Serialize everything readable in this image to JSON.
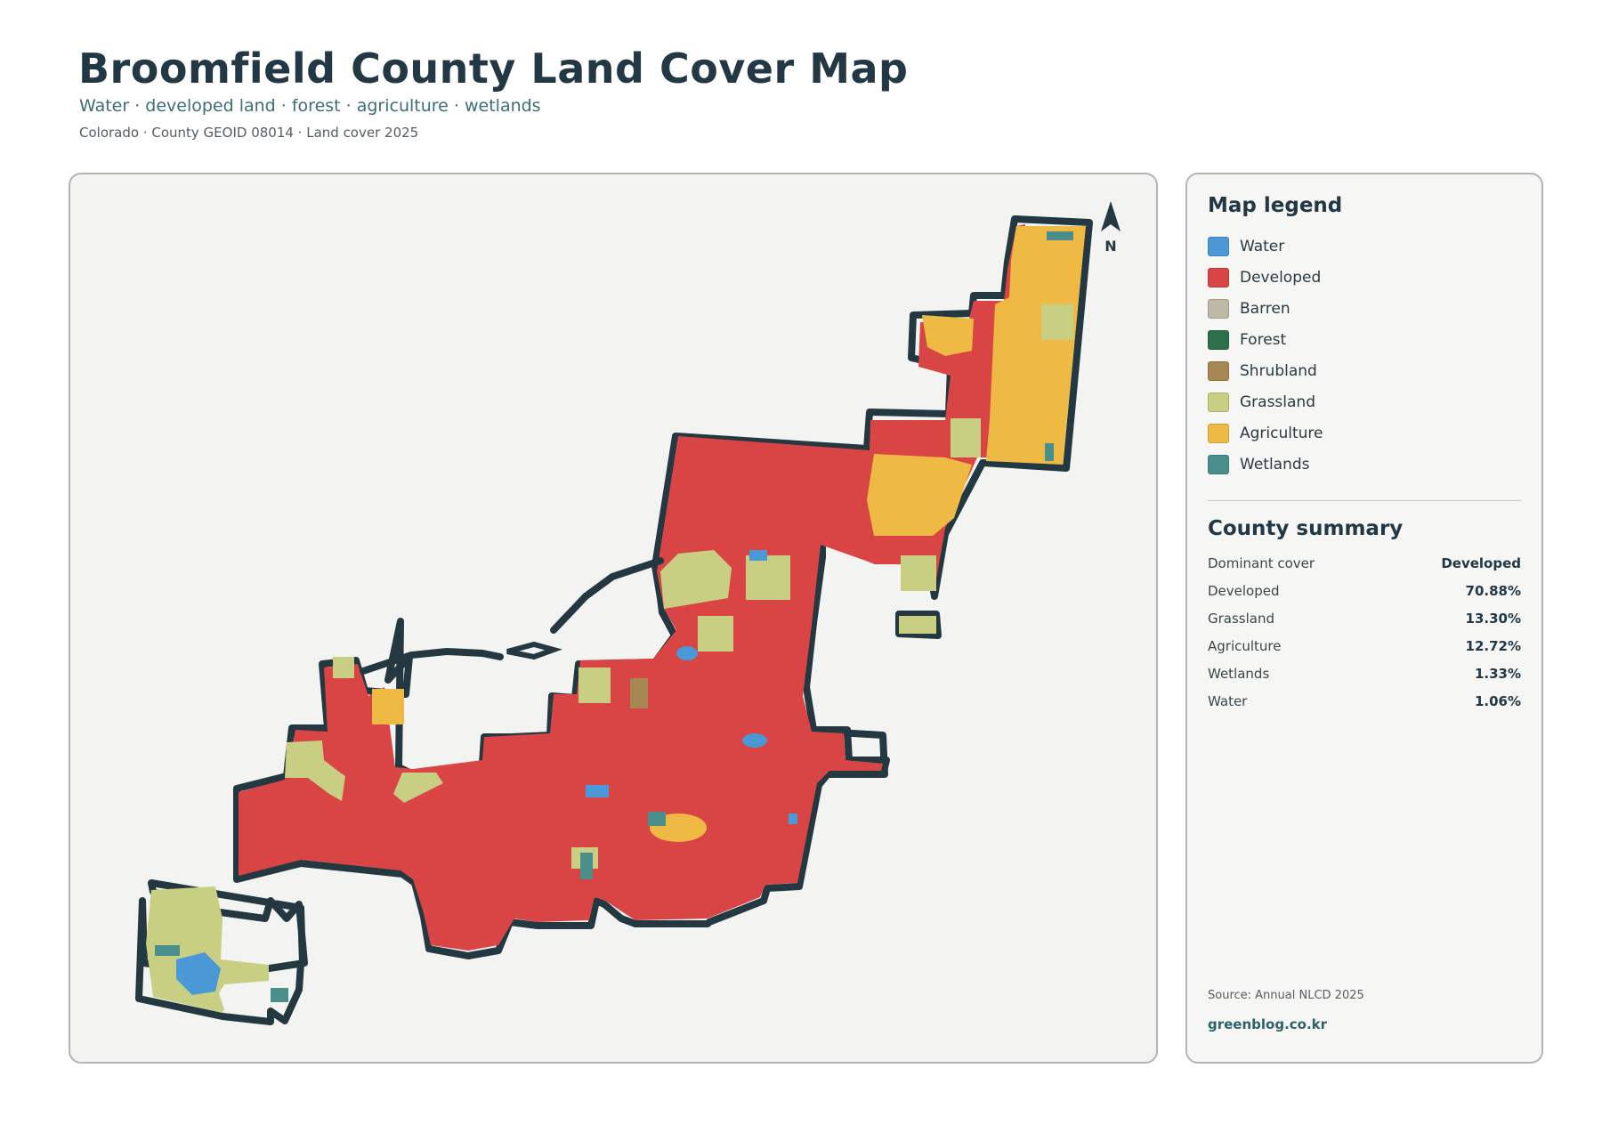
{
  "header": {
    "title": "Broomfield County Land Cover Map",
    "subtitle": "Water · developed land · forest · agriculture · wetlands",
    "meta": "Colorado · County GEOID 08014 · Land cover 2025"
  },
  "map": {
    "north_label": "N",
    "colors": {
      "water": "#4a98d6",
      "developed": "#d94545",
      "barren": "#bfb8a4",
      "forest": "#2b7048",
      "shrubland": "#a68752",
      "grassland": "#c9cf82",
      "agriculture": "#eeba43",
      "wetlands": "#4a8f8c",
      "boundary": "#233840"
    }
  },
  "legend": {
    "title": "Map legend",
    "items": [
      {
        "label": "Water",
        "color": "#4a98d6"
      },
      {
        "label": "Developed",
        "color": "#d94545"
      },
      {
        "label": "Barren",
        "color": "#bfb8a4"
      },
      {
        "label": "Forest",
        "color": "#2b7048"
      },
      {
        "label": "Shrubland",
        "color": "#a68752"
      },
      {
        "label": "Grassland",
        "color": "#c9cf82"
      },
      {
        "label": "Agriculture",
        "color": "#eeba43"
      },
      {
        "label": "Wetlands",
        "color": "#4a8f8c"
      }
    ]
  },
  "summary": {
    "title": "County summary",
    "rows": [
      {
        "label": "Dominant cover",
        "value": "Developed"
      },
      {
        "label": "Developed",
        "value": "70.88%"
      },
      {
        "label": "Grassland",
        "value": "13.30%"
      },
      {
        "label": "Agriculture",
        "value": "12.72%"
      },
      {
        "label": "Wetlands",
        "value": "1.33%"
      },
      {
        "label": "Water",
        "value": "1.06%"
      }
    ]
  },
  "footer": {
    "source": "Source: Annual NLCD 2025",
    "site": "greenblog.co.kr"
  }
}
